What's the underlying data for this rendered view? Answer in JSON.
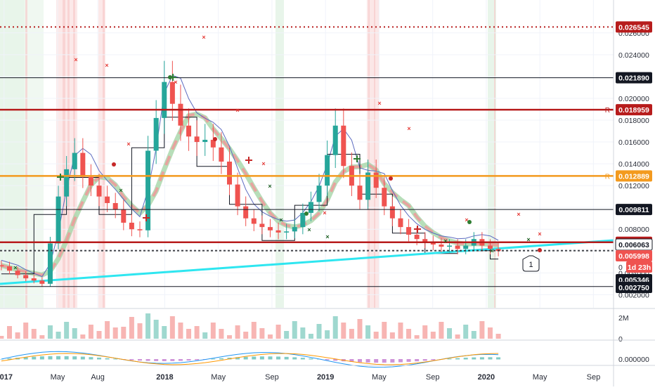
{
  "chart_data": {
    "type": "candlestick",
    "title": "",
    "price_axis": {
      "ticks": [
        "0.026000",
        "0.024000",
        "0.022000",
        "0.020000",
        "0.018000",
        "0.016000",
        "0.014000",
        "0.012000",
        "0.010000",
        "0.008000",
        "0.006000",
        "0.004000",
        "0.002000"
      ],
      "tick_values": [
        0.026,
        0.024,
        0.022,
        0.02,
        0.018,
        0.016,
        0.014,
        0.012,
        0.01,
        0.008,
        0.006,
        0.004,
        0.002
      ],
      "range": [
        0.0008,
        0.0285
      ]
    },
    "time_axis": {
      "labels": [
        "2017",
        "May",
        "Aug",
        "2018",
        "May",
        "Sep",
        "2019",
        "May",
        "Sep",
        "2020",
        "May",
        "Sep"
      ],
      "month_index": [
        0,
        4,
        7,
        12,
        16,
        20,
        24,
        28,
        32,
        36,
        40,
        44
      ],
      "range": [
        -0.3,
        45.5
      ]
    },
    "levels": [
      {
        "label": "0.026545",
        "value": 0.026545,
        "style": "dotted",
        "color": "#b71c1c",
        "badge_color": "#b71c1c"
      },
      {
        "label": "0.021890",
        "value": 0.02189,
        "style": "thin",
        "color": "#131722",
        "badge_color": "#131722"
      },
      {
        "label": "0.018959",
        "value": 0.018959,
        "style": "thick",
        "color": "#b71c1c",
        "badge_color": "#b71c1c",
        "marker": "R"
      },
      {
        "label": "0.012889",
        "value": 0.012889,
        "style": "thick",
        "color": "#f39a1e",
        "badge_color": "#f39a1e",
        "marker": "R"
      },
      {
        "label": "0.009811",
        "value": 0.009811,
        "style": "thin",
        "color": "#131722",
        "badge_color": "#131722"
      },
      {
        "label": "0.006811",
        "value": 0.006811,
        "style": "thick",
        "color": "#b71c1c",
        "badge_color": "#b71c1c"
      },
      {
        "label": "0.006063",
        "value": 0.006063,
        "style": "dashed",
        "color": "#131722",
        "badge_color": "#ffffff",
        "badge_text_color": "#131722",
        "badge_border": "#131722"
      },
      {
        "label": "0.005998",
        "value": 0.005998,
        "style": "dashed",
        "color": "#555555",
        "badge_color": "#ef5350"
      },
      {
        "label": "0.005346",
        "value": 0.005346,
        "style": "none",
        "color": "#131722",
        "badge_color": "#131722"
      },
      {
        "label": "0.002750",
        "value": 0.00275,
        "style": "thin",
        "color": "#131722",
        "badge_color": "#131722"
      }
    ],
    "countdown": {
      "prefix": "0",
      "text": "1d 23h",
      "color": "#ef5350"
    },
    "annotation": {
      "text": "1"
    },
    "volume_axis": {
      "ticks": [
        "2M",
        "0"
      ]
    },
    "macd_axis": {
      "ticks": [
        "0.000000"
      ]
    },
    "candles": [
      0.0046,
      0.0042,
      0.0038,
      0.0035,
      0.0033,
      0.003,
      0.0067,
      0.011,
      0.0135,
      0.015,
      0.0128,
      0.012,
      0.011,
      0.0104,
      0.0098,
      0.0086,
      0.008,
      0.0079,
      0.0152,
      0.0182,
      0.0215,
      0.0195,
      0.0175,
      0.0165,
      0.016,
      0.0162,
      0.0155,
      0.0142,
      0.0121,
      0.0101,
      0.009,
      0.0085,
      0.0082,
      0.0079,
      0.0077,
      0.0078,
      0.0082,
      0.0095,
      0.0105,
      0.012,
      0.0148,
      0.0175,
      0.0138,
      0.012,
      0.0107,
      0.0132,
      0.0118,
      0.0101,
      0.009,
      0.0082,
      0.0075,
      0.0071,
      0.0068,
      0.0066,
      0.0064,
      0.0065,
      0.0062,
      0.0065,
      0.0071,
      0.0065,
      0.0062,
      0.006
    ]
  }
}
